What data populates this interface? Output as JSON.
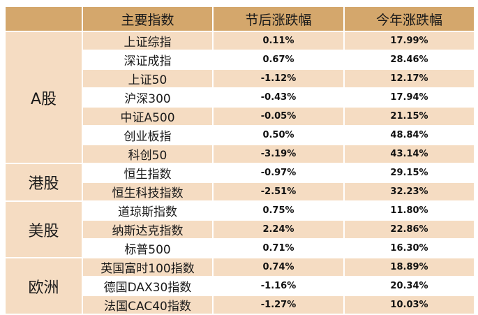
{
  "headers": {
    "category": "",
    "index": "主要指数",
    "post_holiday": "节后涨跌幅",
    "ytd": "今年涨跌幅"
  },
  "groups": [
    {
      "label": "A股",
      "rows": [
        {
          "name": "上证综指",
          "post": "0.11%",
          "ytd": "17.99%"
        },
        {
          "name": "深证成指",
          "post": "0.67%",
          "ytd": "28.46%"
        },
        {
          "name": "上证50",
          "post": "-1.12%",
          "ytd": "12.17%"
        },
        {
          "name": "沪深300",
          "post": "-0.43%",
          "ytd": "17.94%"
        },
        {
          "name": "中证A500",
          "post": "-0.05%",
          "ytd": "21.15%"
        },
        {
          "name": "创业板指",
          "post": "0.50%",
          "ytd": "48.84%"
        },
        {
          "name": "科创50",
          "post": "-3.19%",
          "ytd": "43.14%"
        }
      ]
    },
    {
      "label": "港股",
      "rows": [
        {
          "name": "恒生指数",
          "post": "-0.97%",
          "ytd": "29.15%"
        },
        {
          "name": "恒生科技指数",
          "post": "-2.51%",
          "ytd": "32.23%"
        }
      ]
    },
    {
      "label": "美股",
      "rows": [
        {
          "name": "道琼斯指数",
          "post": "0.75%",
          "ytd": "11.80%"
        },
        {
          "name": "纳斯达克指数",
          "post": "2.24%",
          "ytd": "22.86%"
        },
        {
          "name": "标普500",
          "post": "0.71%",
          "ytd": "16.30%"
        }
      ]
    },
    {
      "label": "欧洲",
      "rows": [
        {
          "name": "英国富时100指数",
          "post": "0.74%",
          "ytd": "18.89%"
        },
        {
          "name": "德国DAX30指数",
          "post": "-1.16%",
          "ytd": "20.34%"
        },
        {
          "name": "法国CAC40指数",
          "post": "-1.27%",
          "ytd": "10.03%"
        }
      ]
    }
  ],
  "colors": {
    "header_bg": "#d4a76c",
    "band_bg": "#f5dcc2",
    "plain_bg": "#ffffff"
  }
}
